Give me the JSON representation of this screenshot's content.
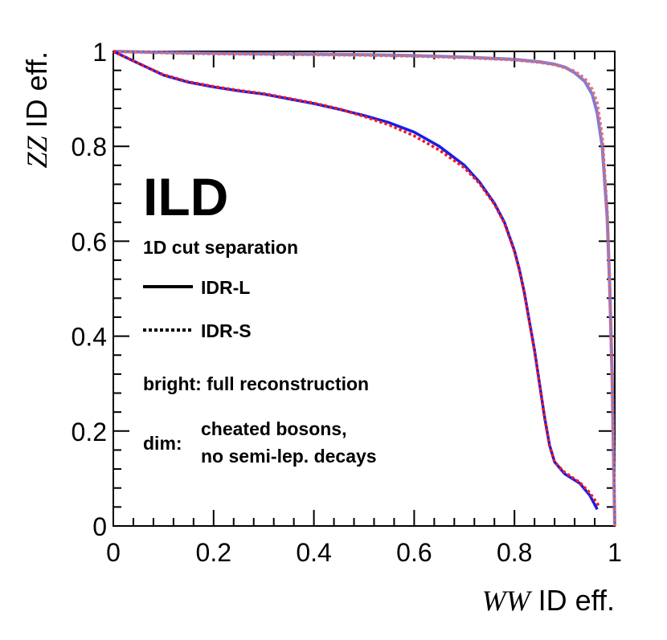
{
  "chart_data": {
    "type": "line",
    "title": "",
    "xlabel": {
      "italic": "WW",
      "rest": " ID eff."
    },
    "ylabel": {
      "italic": "ZZ",
      "rest": " ID eff."
    },
    "xlim": [
      0,
      1
    ],
    "ylim": [
      0,
      1
    ],
    "x_ticks": [
      {
        "value": 0,
        "label": "0"
      },
      {
        "value": 0.2,
        "label": "0.2"
      },
      {
        "value": 0.4,
        "label": "0.4"
      },
      {
        "value": 0.6,
        "label": "0.6"
      },
      {
        "value": 0.8,
        "label": "0.8"
      },
      {
        "value": 1,
        "label": "1"
      }
    ],
    "y_ticks": [
      {
        "value": 0,
        "label": "0"
      },
      {
        "value": 0.2,
        "label": "0.2"
      },
      {
        "value": 0.4,
        "label": "0.4"
      },
      {
        "value": 0.6,
        "label": "0.6"
      },
      {
        "value": 0.8,
        "label": "0.8"
      },
      {
        "value": 1,
        "label": "1"
      }
    ],
    "grid": false,
    "annotation_main": "ILD",
    "legend": {
      "title": "1D cut separation",
      "entries": [
        {
          "label": "IDR-L",
          "style": "solid"
        },
        {
          "label": "IDR-S",
          "style": "dotted"
        }
      ],
      "note_bright": "bright: full reconstruction",
      "note_dim_prefix": "dim:",
      "note_dim_line1": "cheated bosons,",
      "note_dim_line2": "no semi-lep. decays"
    },
    "series": [
      {
        "name": "IDR-L full reconstruction",
        "style": "solid",
        "color": "#1a1aee",
        "width": 3.5,
        "opacity": 1,
        "x": [
          0,
          0.05,
          0.1,
          0.15,
          0.2,
          0.25,
          0.3,
          0.35,
          0.4,
          0.45,
          0.5,
          0.55,
          0.6,
          0.65,
          0.7,
          0.73,
          0.76,
          0.78,
          0.8,
          0.81,
          0.82,
          0.83,
          0.84,
          0.85,
          0.86,
          0.87,
          0.88,
          0.9,
          0.93,
          0.95,
          0.965
        ],
        "y": [
          1.0,
          0.975,
          0.95,
          0.935,
          0.925,
          0.917,
          0.91,
          0.9,
          0.89,
          0.878,
          0.865,
          0.85,
          0.83,
          0.8,
          0.76,
          0.725,
          0.68,
          0.64,
          0.58,
          0.54,
          0.49,
          0.43,
          0.37,
          0.3,
          0.23,
          0.17,
          0.135,
          0.11,
          0.09,
          0.065,
          0.035
        ]
      },
      {
        "name": "IDR-S full reconstruction",
        "style": "dotted",
        "color": "#ee1c1c",
        "width": 3.5,
        "opacity": 1,
        "x": [
          0,
          0.05,
          0.1,
          0.15,
          0.2,
          0.25,
          0.3,
          0.35,
          0.4,
          0.45,
          0.5,
          0.55,
          0.6,
          0.65,
          0.7,
          0.73,
          0.76,
          0.78,
          0.8,
          0.81,
          0.82,
          0.83,
          0.84,
          0.85,
          0.86,
          0.87,
          0.88,
          0.9,
          0.93,
          0.95,
          0.97
        ],
        "y": [
          1.0,
          0.975,
          0.951,
          0.936,
          0.926,
          0.918,
          0.911,
          0.901,
          0.891,
          0.879,
          0.863,
          0.845,
          0.822,
          0.792,
          0.755,
          0.722,
          0.678,
          0.638,
          0.578,
          0.538,
          0.488,
          0.428,
          0.368,
          0.298,
          0.228,
          0.168,
          0.135,
          0.113,
          0.092,
          0.07,
          0.04
        ]
      },
      {
        "name": "IDR-L cheated bosons",
        "style": "solid",
        "color": "#6e6ee0",
        "width": 4,
        "opacity": 0.9,
        "x": [
          0,
          0.1,
          0.2,
          0.3,
          0.4,
          0.5,
          0.6,
          0.7,
          0.8,
          0.85,
          0.88,
          0.9,
          0.92,
          0.94,
          0.955,
          0.965,
          0.975,
          0.985,
          0.99,
          0.995,
          1.0
        ],
        "y": [
          1.0,
          0.998,
          0.996,
          0.995,
          0.994,
          0.993,
          0.991,
          0.988,
          0.983,
          0.978,
          0.973,
          0.967,
          0.955,
          0.937,
          0.91,
          0.87,
          0.8,
          0.65,
          0.5,
          0.3,
          0.0
        ]
      },
      {
        "name": "IDR-S cheated bosons",
        "style": "dotted",
        "color": "#e06a6a",
        "width": 4,
        "opacity": 0.9,
        "x": [
          0,
          0.1,
          0.2,
          0.3,
          0.4,
          0.5,
          0.6,
          0.7,
          0.8,
          0.85,
          0.88,
          0.9,
          0.92,
          0.94,
          0.955,
          0.965,
          0.975,
          0.985,
          0.99,
          0.995,
          1.0
        ],
        "y": [
          1.0,
          0.997,
          0.995,
          0.994,
          0.993,
          0.992,
          0.99,
          0.987,
          0.982,
          0.977,
          0.972,
          0.966,
          0.958,
          0.943,
          0.92,
          0.89,
          0.82,
          0.66,
          0.5,
          0.3,
          0.0
        ]
      }
    ]
  }
}
